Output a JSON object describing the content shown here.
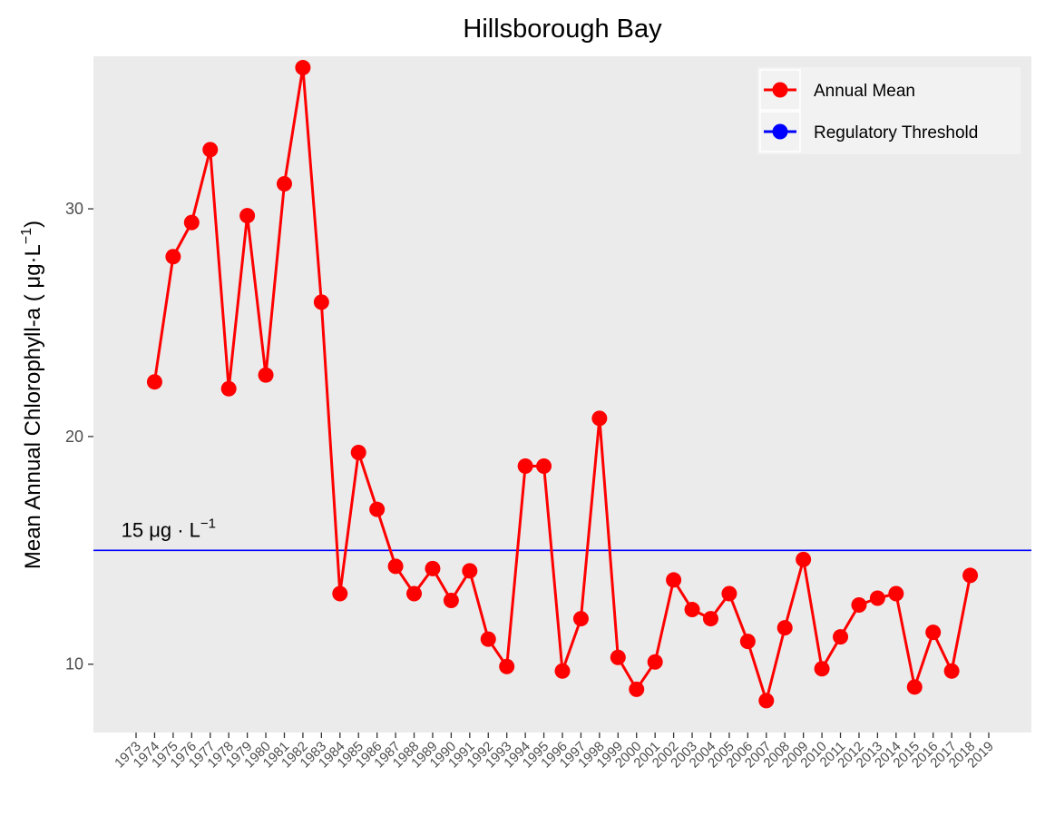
{
  "chart_data": {
    "type": "line",
    "title": "Hillsborough Bay",
    "ylabel": "Mean Annual Chlorophyll-a ( μg·L",
    "ylabel_sup": "−1",
    "ylabel_suffix": ")",
    "x_ticks": [
      1973,
      1974,
      1975,
      1976,
      1977,
      1978,
      1979,
      1980,
      1981,
      1982,
      1983,
      1984,
      1985,
      1986,
      1987,
      1988,
      1989,
      1990,
      1991,
      1992,
      1993,
      1994,
      1995,
      1996,
      1997,
      1998,
      1999,
      2000,
      2001,
      2002,
      2003,
      2004,
      2005,
      2006,
      2007,
      2008,
      2009,
      2010,
      2011,
      2012,
      2013,
      2014,
      2015,
      2016,
      2017,
      2018,
      2019
    ],
    "xlim": [
      1973,
      2019
    ],
    "ylim": [
      7.0,
      36.7
    ],
    "y_ticks": [
      10,
      20,
      30
    ],
    "grid": false,
    "legend_position": "top-right",
    "series": [
      {
        "name": "Annual Mean",
        "color": "#ff0000",
        "x": [
          1974,
          1975,
          1976,
          1977,
          1978,
          1979,
          1980,
          1981,
          1982,
          1983,
          1984,
          1985,
          1986,
          1987,
          1988,
          1989,
          1990,
          1991,
          1992,
          1993,
          1994,
          1995,
          1996,
          1997,
          1998,
          1999,
          2000,
          2001,
          2002,
          2003,
          2004,
          2005,
          2006,
          2007,
          2008,
          2009,
          2010,
          2011,
          2012,
          2013,
          2014,
          2015,
          2016,
          2017,
          2018
        ],
        "values": [
          22.4,
          27.9,
          29.4,
          32.6,
          22.1,
          29.7,
          22.7,
          31.1,
          36.2,
          25.9,
          13.1,
          19.3,
          16.8,
          14.3,
          13.1,
          14.2,
          12.8,
          14.1,
          11.1,
          9.9,
          18.7,
          18.7,
          9.7,
          12.0,
          20.8,
          10.3,
          8.9,
          10.1,
          13.7,
          12.4,
          12.0,
          13.1,
          11.0,
          8.4,
          11.6,
          14.6,
          9.8,
          11.2,
          12.6,
          12.9,
          13.1,
          9.0,
          11.4,
          9.7,
          13.9
        ]
      },
      {
        "name": "Regulatory Threshold",
        "color": "#0000ff",
        "value": 15.0
      }
    ],
    "annotation": {
      "text": "15 μg · L",
      "sup": "−1",
      "at_x": 1972.2,
      "at_y": 15.0
    }
  }
}
